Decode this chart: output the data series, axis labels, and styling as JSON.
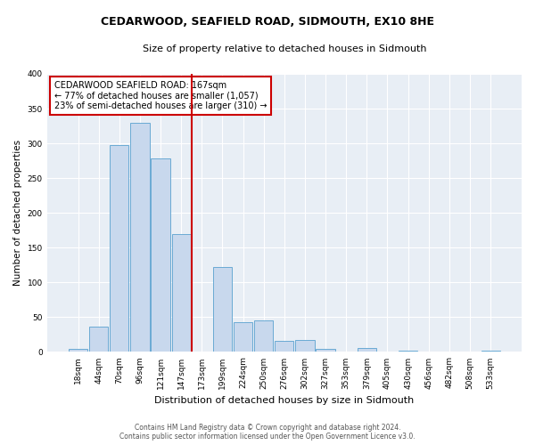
{
  "title": "CEDARWOOD, SEAFIELD ROAD, SIDMOUTH, EX10 8HE",
  "subtitle": "Size of property relative to detached houses in Sidmouth",
  "xlabel": "Distribution of detached houses by size in Sidmouth",
  "ylabel": "Number of detached properties",
  "bin_labels": [
    "18sqm",
    "44sqm",
    "70sqm",
    "96sqm",
    "121sqm",
    "147sqm",
    "173sqm",
    "199sqm",
    "224sqm",
    "250sqm",
    "276sqm",
    "302sqm",
    "327sqm",
    "353sqm",
    "379sqm",
    "405sqm",
    "430sqm",
    "456sqm",
    "482sqm",
    "508sqm",
    "533sqm"
  ],
  "bar_heights": [
    5,
    37,
    297,
    330,
    278,
    170,
    0,
    122,
    43,
    46,
    16,
    17,
    5,
    0,
    6,
    0,
    2,
    1,
    0,
    0,
    2
  ],
  "bar_color": "#c8d8ed",
  "bar_edgecolor": "#6aaad4",
  "vline_x_index": 6,
  "vline_color": "#cc0000",
  "annotation_title": "CEDARWOOD SEAFIELD ROAD: 167sqm",
  "annotation_line1": "← 77% of detached houses are smaller (1,057)",
  "annotation_line2": "23% of semi-detached houses are larger (310) →",
  "annotation_box_edgecolor": "#cc0000",
  "ylim": [
    0,
    400
  ],
  "yticks": [
    0,
    50,
    100,
    150,
    200,
    250,
    300,
    350,
    400
  ],
  "footer_line1": "Contains HM Land Registry data © Crown copyright and database right 2024.",
  "footer_line2": "Contains public sector information licensed under the Open Government Licence v3.0.",
  "bg_color": "#ffffff",
  "plot_bg_color": "#e8eef5",
  "grid_color": "#ffffff",
  "title_fontsize": 9,
  "subtitle_fontsize": 8,
  "xlabel_fontsize": 8,
  "ylabel_fontsize": 7.5,
  "tick_fontsize": 6.5,
  "annotation_fontsize": 7,
  "footer_fontsize": 5.5
}
